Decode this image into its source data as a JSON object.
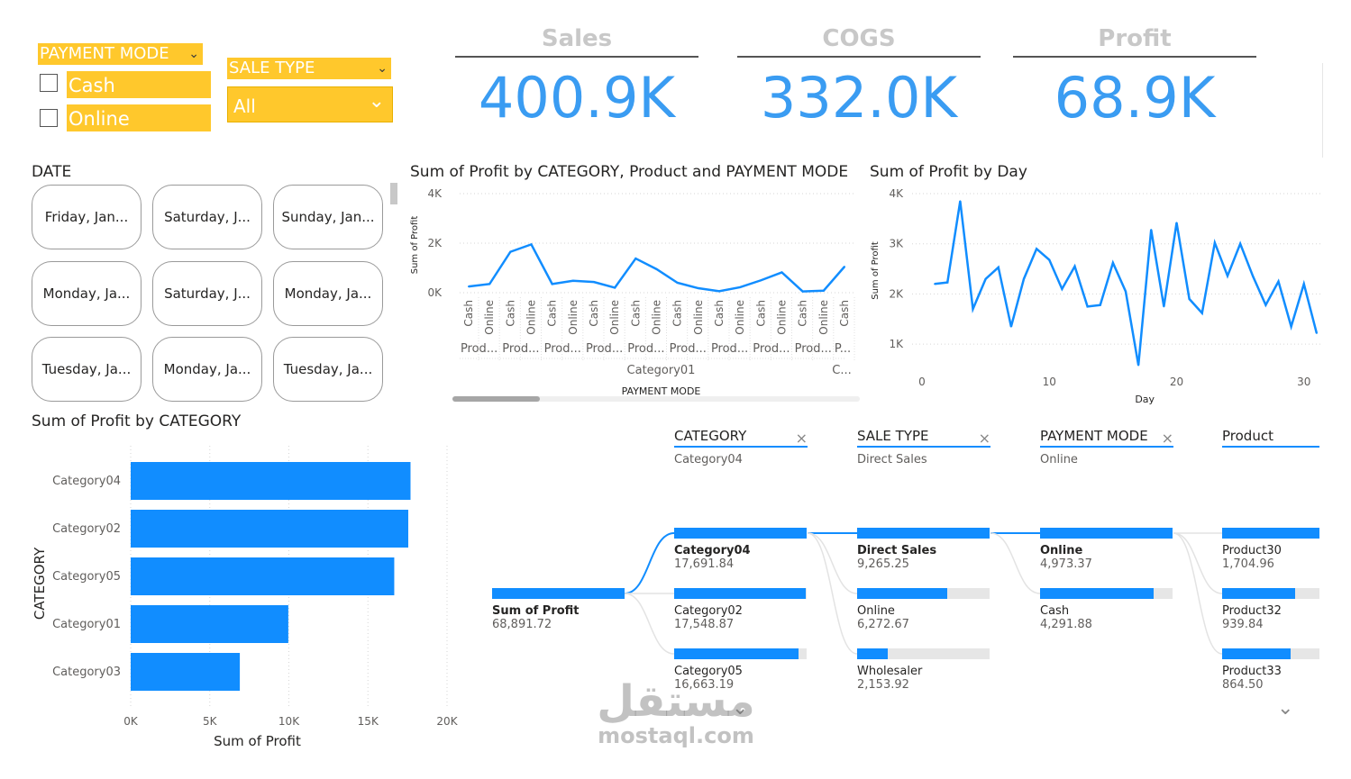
{
  "slicers": {
    "payment_mode": {
      "title": "PAYMENT MODE",
      "options": [
        "Cash",
        "Online"
      ]
    },
    "sale_type": {
      "title": "SALE TYPE",
      "value": "All"
    }
  },
  "kpis": [
    {
      "title": "Sales",
      "value": "400.9K"
    },
    {
      "title": "COGS",
      "value": "332.0K"
    },
    {
      "title": "Profit",
      "value": "68.9K"
    }
  ],
  "date_slicer": {
    "title": "DATE",
    "tiles": [
      "Friday, Jan...",
      "Saturday, J...",
      "Sunday, Jan...",
      "Monday, Ja...",
      "Saturday, J...",
      "Monday, Ja...",
      "Tuesday, Ja...",
      "Monday, Ja...",
      "Tuesday, Ja..."
    ]
  },
  "chart_data": [
    {
      "type": "line",
      "title": "Sum of Profit by CATEGORY, Product and PAYMENT MODE",
      "ylabel": "Sum of Profit",
      "xlabel": "PAYMENT MODE",
      "ylim": [
        0,
        4000
      ],
      "yticks": [
        "0K",
        "2K",
        "4K"
      ],
      "categories": [
        "Cash",
        "Online",
        "Cash",
        "Online",
        "Cash",
        "Online",
        "Cash",
        "Online",
        "Cash",
        "Online",
        "Cash",
        "Online",
        "Cash",
        "Online",
        "Cash",
        "Online",
        "Cash",
        "Online",
        "Cash"
      ],
      "product_labels": [
        "Prod...",
        "Prod...",
        "Prod...",
        "Prod...",
        "Prod...",
        "Prod...",
        "Prod...",
        "Prod...",
        "Prod...",
        "P..."
      ],
      "group_labels": [
        "Category01",
        "C..."
      ],
      "values": [
        250,
        350,
        1650,
        1950,
        350,
        480,
        430,
        200,
        1380,
        950,
        400,
        180,
        60,
        220,
        500,
        820,
        50,
        80,
        1050
      ]
    },
    {
      "type": "line",
      "title": "Sum of Profit by Day",
      "xlabel": "Day",
      "ylabel": "Sum of Profit",
      "ylim": [
        500,
        4000
      ],
      "xlim": [
        0,
        32
      ],
      "yticks": [
        "1K",
        "2K",
        "3K",
        "4K"
      ],
      "xticks": [
        "0",
        "10",
        "20",
        "30"
      ],
      "x": [
        1,
        2,
        3,
        4,
        5,
        6,
        7,
        8,
        9,
        10,
        11,
        12,
        13,
        14,
        15,
        16,
        17,
        18,
        19,
        20,
        21,
        22,
        23,
        24,
        25,
        26,
        27,
        28,
        29,
        30,
        31
      ],
      "values": [
        2200,
        2230,
        3850,
        1700,
        2300,
        2530,
        1350,
        2300,
        2900,
        2680,
        2100,
        2550,
        1750,
        1780,
        2620,
        2050,
        580,
        3280,
        1750,
        3420,
        1900,
        1620,
        3020,
        2360,
        3000,
        2350,
        1780,
        2250,
        1350,
        2200,
        1220
      ]
    },
    {
      "type": "bar",
      "orientation": "horizontal",
      "title": "Sum of Profit by CATEGORY",
      "xlabel": "Sum of Profit",
      "ylabel": "CATEGORY",
      "xlim": [
        0,
        20000
      ],
      "xticks": [
        "0K",
        "5K",
        "10K",
        "15K",
        "20K"
      ],
      "categories": [
        "Category04",
        "Category02",
        "Category05",
        "Category01",
        "Category03"
      ],
      "values": [
        17691.84,
        17548.87,
        16663.19,
        9965,
        6900
      ]
    }
  ],
  "decomp": {
    "levels": [
      {
        "title": "CATEGORY",
        "selected": "Category04",
        "close": "×"
      },
      {
        "title": "SALE TYPE",
        "selected": "Direct Sales",
        "close": "×"
      },
      {
        "title": "PAYMENT MODE",
        "selected": "Online",
        "close": "×"
      },
      {
        "title": "Product"
      }
    ],
    "root": {
      "name": "Sum of Profit",
      "value": "68,891.72"
    },
    "category": [
      {
        "name": "Category04",
        "value": "17,691.84",
        "frac": 1.0
      },
      {
        "name": "Category02",
        "value": "17,548.87",
        "frac": 0.99
      },
      {
        "name": "Category05",
        "value": "16,663.19",
        "frac": 0.94
      }
    ],
    "sale_type": [
      {
        "name": "Direct Sales",
        "value": "9,265.25",
        "frac": 1.0
      },
      {
        "name": "Online",
        "value": "6,272.67",
        "frac": 0.68
      },
      {
        "name": "Wholesaler",
        "value": "2,153.92",
        "frac": 0.23
      }
    ],
    "payment_mode": [
      {
        "name": "Online",
        "value": "4,973.37",
        "frac": 1.0
      },
      {
        "name": "Cash",
        "value": "4,291.88",
        "frac": 0.86
      }
    ],
    "product": [
      {
        "name": "Product30",
        "value": "1,704.96",
        "frac": 1.0
      },
      {
        "name": "Product32",
        "value": "939.84",
        "frac": 0.55
      },
      {
        "name": "Product33",
        "value": "864.50",
        "frac": 0.51
      }
    ]
  },
  "watermark": {
    "arabic": "مستقل",
    "latin": "mostaql.com"
  },
  "colors": {
    "accent": "#118DFF",
    "kpi": "#3A9CF2",
    "slicer": "#FFC82C"
  }
}
